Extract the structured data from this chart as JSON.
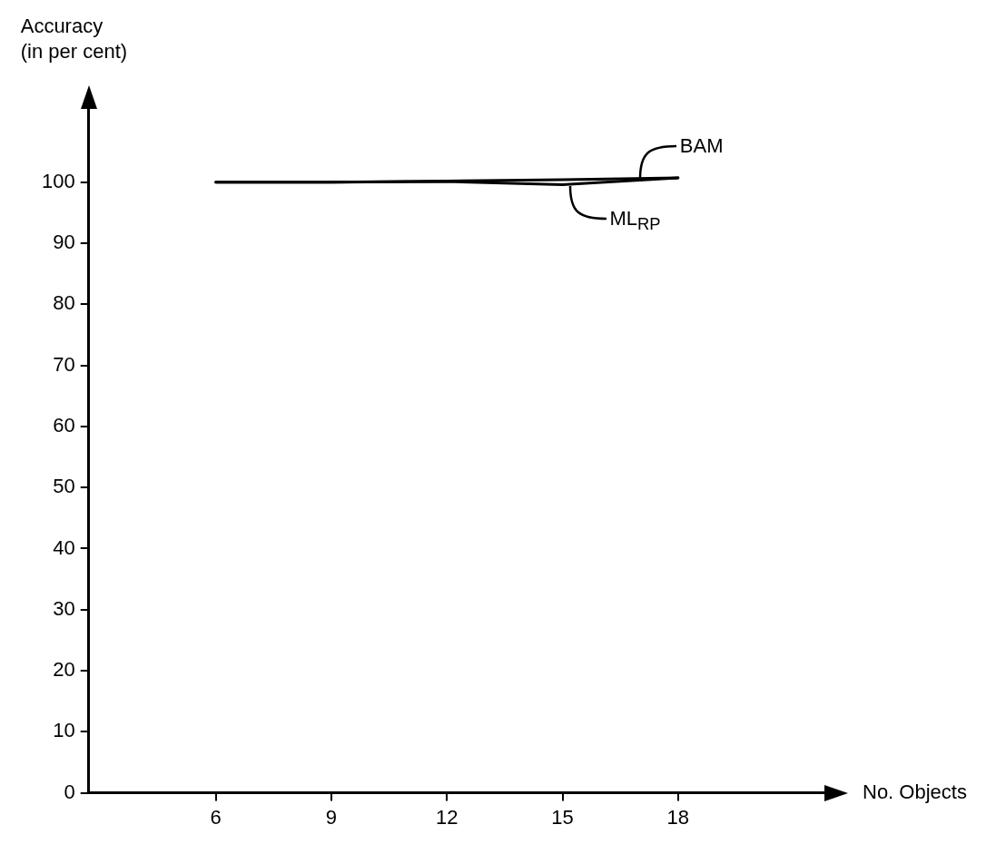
{
  "chart_data": {
    "type": "line",
    "xlabel": "No. Objects",
    "ylabel": "Accuracy\n(in per cent)",
    "x": [
      6,
      9,
      12,
      15,
      18
    ],
    "series": [
      {
        "name": "BAM",
        "color": "#000000",
        "values": [
          100,
          100,
          100.2,
          100.4,
          100.7
        ]
      },
      {
        "name": "ML$_{RP}$",
        "color": "#000000",
        "values": [
          100,
          100,
          100.1,
          99.6,
          100.7
        ]
      }
    ],
    "xlim": [
      2.7,
      21.8
    ],
    "ylim": [
      0,
      112
    ],
    "xticks": [
      6,
      9,
      12,
      15,
      18
    ],
    "yticks": [
      0,
      10,
      20,
      30,
      40,
      50,
      60,
      70,
      80,
      90,
      100
    ],
    "grid": false,
    "legend": false,
    "marker": "none",
    "line_style": "solid"
  }
}
